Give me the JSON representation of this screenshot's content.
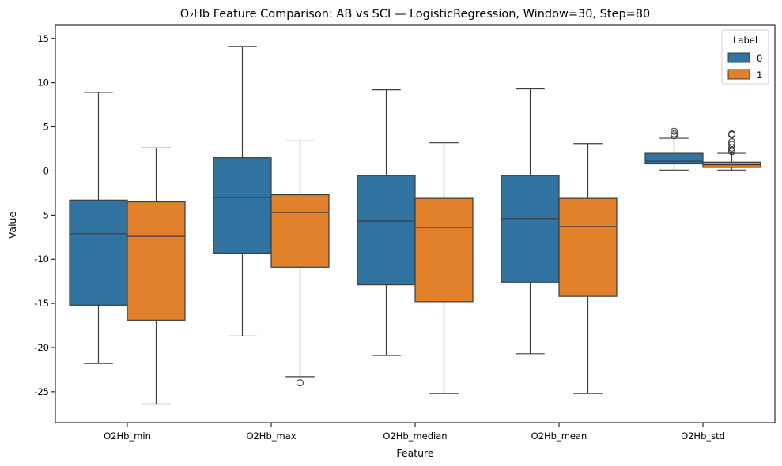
{
  "chart_data": {
    "type": "boxplot",
    "title": "O₂Hb Feature Comparison: AB vs SCI — LogisticRegression, Window=30, Step=80",
    "xlabel": "Feature",
    "ylabel": "Value",
    "ylim": [
      -28.5,
      16.5
    ],
    "yticks": [
      15,
      10,
      5,
      0,
      -5,
      -10,
      -15,
      -20,
      -25
    ],
    "grid": false,
    "legend": {
      "title": "Label",
      "placement": "top-right",
      "entries": [
        "0",
        "1"
      ]
    },
    "categories": [
      "O2Hb_min",
      "O2Hb_max",
      "O2Hb_median",
      "O2Hb_mean",
      "O2Hb_std"
    ],
    "series": [
      {
        "name": "0",
        "color": "#3274a1",
        "boxes": [
          {
            "whislo": -21.8,
            "q1": -15.2,
            "med": -7.1,
            "q3": -3.3,
            "whishi": 8.9,
            "fliers": []
          },
          {
            "whislo": -18.7,
            "q1": -9.3,
            "med": -3.0,
            "q3": 1.5,
            "whishi": 14.1,
            "fliers": []
          },
          {
            "whislo": -20.9,
            "q1": -12.9,
            "med": -5.7,
            "q3": -0.5,
            "whishi": 9.2,
            "fliers": []
          },
          {
            "whislo": -20.7,
            "q1": -12.6,
            "med": -5.4,
            "q3": -0.5,
            "whishi": 9.3,
            "fliers": []
          },
          {
            "whislo": 0.1,
            "q1": 0.8,
            "med": 1.1,
            "q3": 2.0,
            "whishi": 3.7,
            "fliers": [
              4.0,
              4.2,
              4.5
            ]
          }
        ]
      },
      {
        "name": "1",
        "color": "#e1812c",
        "boxes": [
          {
            "whislo": -26.4,
            "q1": -16.9,
            "med": -7.4,
            "q3": -3.5,
            "whishi": 2.6,
            "fliers": []
          },
          {
            "whislo": -23.3,
            "q1": -10.9,
            "med": -4.7,
            "q3": -2.7,
            "whishi": 3.4,
            "fliers": [
              -24.0
            ]
          },
          {
            "whislo": -25.2,
            "q1": -14.8,
            "med": -6.4,
            "q3": -3.1,
            "whishi": 3.2,
            "fliers": []
          },
          {
            "whislo": -25.2,
            "q1": -14.2,
            "med": -6.3,
            "q3": -3.1,
            "whishi": 3.1,
            "fliers": []
          },
          {
            "whislo": 0.1,
            "q1": 0.4,
            "med": 0.7,
            "q3": 1.0,
            "whishi": 2.0,
            "fliers": [
              2.2,
              2.4,
              2.6,
              3.0,
              3.3,
              4.1,
              4.2
            ]
          }
        ]
      }
    ]
  }
}
